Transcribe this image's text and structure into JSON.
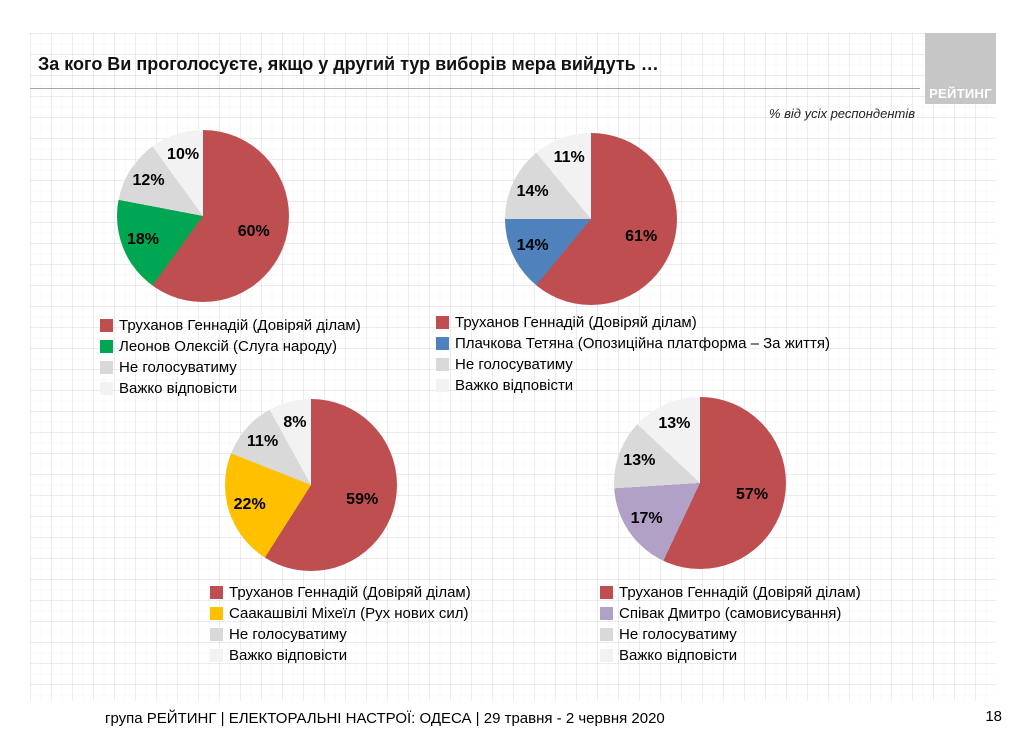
{
  "header": {
    "title": "За кого Ви проголосуєте, якщо у другий тур виборів мера вийдуть …",
    "logo": "РЕЙТИНГ",
    "note": "% від усіх респондентів"
  },
  "colors": {
    "truhanov_red": "#BF4E50",
    "leonov_green": "#00A651",
    "plachkova_blue": "#4F81BD",
    "saakashvili_yellow": "#FFC000",
    "spivak_purple": "#B2A1C7",
    "no_vote_gray": "#D9D9D9",
    "hard_to_say_gray": "#F2F2F2"
  },
  "chart_data": [
    {
      "type": "pie",
      "slices": [
        {
          "label": "Труханов Геннадій (Довіряй ділам)",
          "value": 60,
          "color": "#BF4E50"
        },
        {
          "label": "Леонов Олексій (Слуга народу)",
          "value": 18,
          "color": "#00A651"
        },
        {
          "label": "Не голосуватиму",
          "value": 12,
          "color": "#D9D9D9"
        },
        {
          "label": "Важко відповісти",
          "value": 10,
          "color": "#F2F2F2"
        }
      ]
    },
    {
      "type": "pie",
      "slices": [
        {
          "label": "Труханов Геннадій (Довіряй ділам)",
          "value": 61,
          "color": "#BF4E50"
        },
        {
          "label": "Плачкова Тетяна (Опозиційна платформа – За життя)",
          "value": 14,
          "color": "#4F81BD"
        },
        {
          "label": "Не голосуватиму",
          "value": 14,
          "color": "#D9D9D9"
        },
        {
          "label": "Важко відповісти",
          "value": 11,
          "color": "#F2F2F2"
        }
      ]
    },
    {
      "type": "pie",
      "slices": [
        {
          "label": "Труханов Геннадій (Довіряй ділам)",
          "value": 59,
          "color": "#BF4E50"
        },
        {
          "label": "Саакашвілі Міхеїл (Рух нових сил)",
          "value": 22,
          "color": "#FFC000"
        },
        {
          "label": "Не голосуватиму",
          "value": 11,
          "color": "#D9D9D9"
        },
        {
          "label": "Важко відповісти",
          "value": 8,
          "color": "#F2F2F2"
        }
      ]
    },
    {
      "type": "pie",
      "slices": [
        {
          "label": "Труханов Геннадій (Довіряй ділам)",
          "value": 57,
          "color": "#BF4E50"
        },
        {
          "label": "Співак Дмитро (самовисування)",
          "value": 17,
          "color": "#B2A1C7"
        },
        {
          "label": "Не голосуватиму",
          "value": 13,
          "color": "#D9D9D9"
        },
        {
          "label": "Важко відповісти",
          "value": 13,
          "color": "#F2F2F2"
        }
      ]
    }
  ],
  "footer": {
    "text": "група РЕЙТИНГ  |  ЕЛЕКТОРАЛЬНІ НАСТРОЇ: ОДЕСА | 29 травня - 2 червня 2020",
    "page": "18"
  }
}
